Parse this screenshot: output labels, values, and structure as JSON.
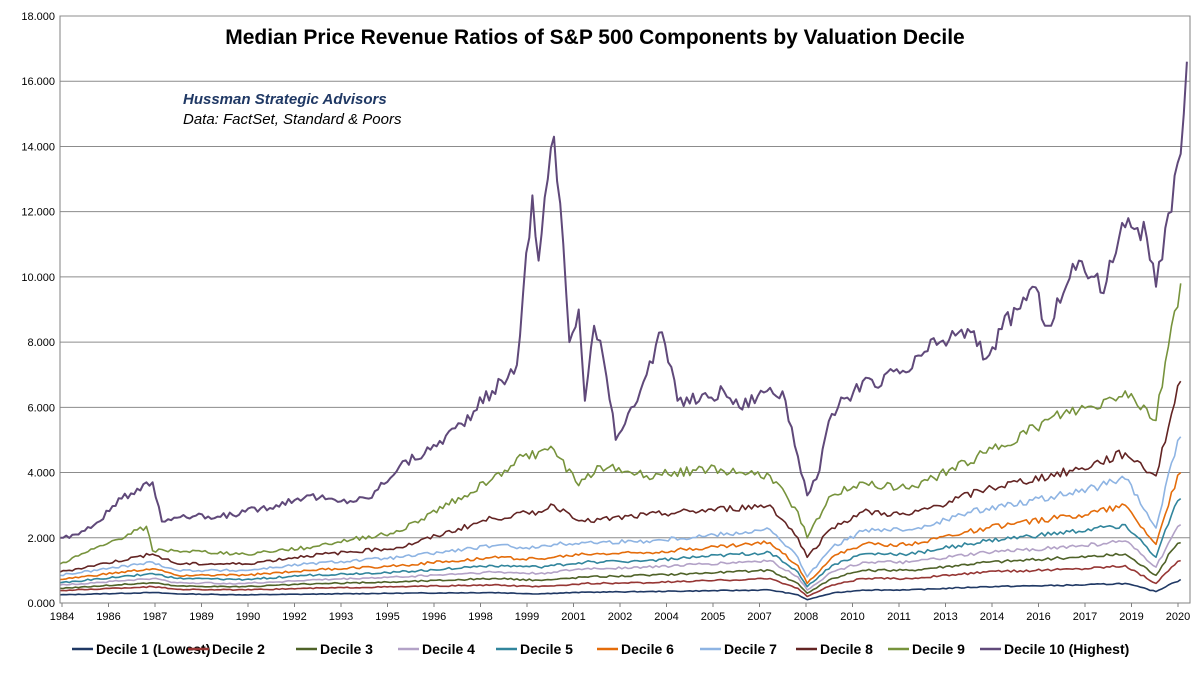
{
  "chart_data": {
    "type": "line",
    "title": "Median Price Revenue Ratios of S&P 500 Components by Valuation Decile",
    "annotations": [
      "Hussman Strategic Advisors",
      "Data: FactSet, Standard & Poors"
    ],
    "xlabel": "",
    "ylabel": "",
    "ylim": [
      0,
      18
    ],
    "xlim": [
      1984.0,
      2020.6
    ],
    "y_ticks": [
      "0.000",
      "2.000",
      "4.000",
      "6.000",
      "8.000",
      "10.000",
      "12.000",
      "14.000",
      "16.000",
      "18.000"
    ],
    "x_ticks": [
      "1984",
      "1986",
      "1987",
      "1989",
      "1990",
      "1992",
      "1993",
      "1995",
      "1996",
      "1998",
      "1999",
      "2001",
      "2002",
      "2004",
      "2005",
      "2007",
      "2008",
      "2010",
      "2011",
      "2013",
      "2014",
      "2016",
      "2017",
      "2019",
      "2020"
    ],
    "grid": "horizontal",
    "legend_position": "bottom",
    "series": [
      {
        "name": "Decile 1 (Lowest)",
        "color": "#1f3864",
        "x": [
          1984.0,
          1987.0,
          1987.8,
          1990.0,
          1992.0,
          1995.0,
          1998.0,
          1999.5,
          2000.0,
          2001.0,
          2003.0,
          2007.0,
          2007.9,
          2008.2,
          2009.0,
          2010.0,
          2011.5,
          2014.0,
          2017.0,
          2018.5,
          2019.5,
          2020.0,
          2020.3
        ],
        "y": [
          0.25,
          0.32,
          0.28,
          0.25,
          0.27,
          0.3,
          0.32,
          0.28,
          0.3,
          0.33,
          0.35,
          0.4,
          0.25,
          0.1,
          0.3,
          0.4,
          0.4,
          0.5,
          0.55,
          0.6,
          0.35,
          0.6,
          0.72
        ]
      },
      {
        "name": "Decile 2",
        "color": "#963634",
        "x": [
          1984.0,
          1987.0,
          1987.8,
          1990.0,
          1992.0,
          1995.0,
          1998.0,
          1999.5,
          2000.0,
          2001.0,
          2003.0,
          2007.0,
          2007.9,
          2008.2,
          2009.0,
          2010.0,
          2011.5,
          2014.0,
          2017.0,
          2018.5,
          2019.5,
          2020.0,
          2020.3
        ],
        "y": [
          0.38,
          0.5,
          0.42,
          0.4,
          0.45,
          0.5,
          0.55,
          0.5,
          0.52,
          0.6,
          0.62,
          0.75,
          0.45,
          0.2,
          0.55,
          0.75,
          0.75,
          0.95,
          1.05,
          1.15,
          0.6,
          1.1,
          1.3
        ]
      },
      {
        "name": "Decile 3",
        "color": "#4f6228",
        "x": [
          1984.0,
          1987.0,
          1987.8,
          1990.0,
          1992.0,
          1995.0,
          1998.0,
          1999.5,
          2000.0,
          2001.0,
          2003.0,
          2007.0,
          2007.9,
          2008.2,
          2009.0,
          2010.0,
          2011.5,
          2014.0,
          2017.0,
          2018.5,
          2019.5,
          2020.0,
          2020.3
        ],
        "y": [
          0.45,
          0.62,
          0.52,
          0.5,
          0.58,
          0.65,
          0.75,
          0.7,
          0.72,
          0.8,
          0.85,
          1.0,
          0.6,
          0.3,
          0.75,
          1.0,
          1.0,
          1.25,
          1.4,
          1.5,
          0.85,
          1.6,
          1.85
        ]
      },
      {
        "name": "Decile 4",
        "color": "#b3a2c7",
        "x": [
          1984.0,
          1987.0,
          1987.8,
          1990.0,
          1992.0,
          1995.0,
          1998.0,
          1999.5,
          2000.0,
          2001.0,
          2003.0,
          2007.0,
          2007.9,
          2008.2,
          2009.0,
          2010.0,
          2011.5,
          2014.0,
          2017.0,
          2018.5,
          2019.5,
          2020.0,
          2020.3
        ],
        "y": [
          0.55,
          0.75,
          0.62,
          0.6,
          0.7,
          0.8,
          0.95,
          0.9,
          0.95,
          1.05,
          1.1,
          1.3,
          0.8,
          0.4,
          0.95,
          1.25,
          1.25,
          1.55,
          1.75,
          1.9,
          1.1,
          2.0,
          2.4
        ]
      },
      {
        "name": "Decile 5",
        "color": "#31859c",
        "x": [
          1984.0,
          1987.0,
          1987.8,
          1990.0,
          1992.0,
          1995.0,
          1998.0,
          1999.5,
          2000.0,
          2001.0,
          2003.0,
          2007.0,
          2007.9,
          2008.2,
          2009.0,
          2010.0,
          2011.5,
          2014.0,
          2017.0,
          2018.5,
          2019.5,
          2020.0,
          2020.3
        ],
        "y": [
          0.62,
          0.9,
          0.75,
          0.72,
          0.85,
          0.95,
          1.15,
          1.1,
          1.15,
          1.25,
          1.3,
          1.55,
          0.95,
          0.5,
          1.15,
          1.5,
          1.5,
          1.9,
          2.2,
          2.4,
          1.4,
          2.7,
          3.2
        ]
      },
      {
        "name": "Decile 6",
        "color": "#e46c0a",
        "x": [
          1984.0,
          1987.0,
          1987.8,
          1990.0,
          1992.0,
          1995.0,
          1998.0,
          1999.5,
          2000.0,
          2001.0,
          2003.0,
          2007.0,
          2007.9,
          2008.2,
          2009.0,
          2010.0,
          2011.5,
          2014.0,
          2017.0,
          2018.5,
          2019.5,
          2020.0,
          2020.3
        ],
        "y": [
          0.72,
          1.05,
          0.85,
          0.85,
          1.0,
          1.15,
          1.4,
          1.35,
          1.4,
          1.5,
          1.55,
          1.85,
          1.15,
          0.6,
          1.4,
          1.8,
          1.8,
          2.3,
          2.7,
          3.0,
          1.8,
          3.4,
          4.0
        ]
      },
      {
        "name": "Decile 7",
        "color": "#8eb4e3",
        "x": [
          1984.0,
          1987.0,
          1987.8,
          1990.0,
          1992.0,
          1995.0,
          1998.0,
          1999.5,
          2000.0,
          2001.0,
          2003.0,
          2007.0,
          2007.9,
          2008.2,
          2009.0,
          2010.0,
          2011.5,
          2014.0,
          2017.0,
          2018.5,
          2019.5,
          2020.0,
          2020.3
        ],
        "y": [
          0.85,
          1.25,
          1.0,
          1.0,
          1.2,
          1.4,
          1.75,
          1.7,
          1.8,
          1.85,
          1.9,
          2.25,
          1.4,
          0.8,
          1.7,
          2.2,
          2.25,
          2.9,
          3.4,
          3.8,
          2.3,
          4.3,
          5.1
        ]
      },
      {
        "name": "Decile 8",
        "color": "#632423",
        "x": [
          1984.0,
          1987.0,
          1987.8,
          1990.0,
          1992.0,
          1995.0,
          1998.0,
          1999.5,
          2000.0,
          2001.0,
          2003.0,
          2007.0,
          2007.9,
          2008.2,
          2009.0,
          2010.0,
          2011.5,
          2014.0,
          2017.0,
          2018.5,
          2019.5,
          2020.0,
          2020.3
        ],
        "y": [
          0.95,
          1.5,
          1.2,
          1.2,
          1.45,
          1.7,
          2.6,
          2.8,
          3.0,
          2.5,
          2.7,
          3.0,
          2.0,
          1.4,
          2.3,
          2.8,
          2.7,
          3.5,
          4.1,
          4.6,
          3.9,
          5.8,
          6.8
        ]
      },
      {
        "name": "Decile 9",
        "color": "#77933c",
        "x": [
          1984.0,
          1985.5,
          1986.8,
          1987.0,
          1987.8,
          1990.0,
          1992.0,
          1995.0,
          1998.0,
          1999.0,
          2000.0,
          2000.8,
          2001.5,
          2003.0,
          2005.0,
          2007.0,
          2007.9,
          2008.2,
          2009.0,
          2010.0,
          2011.5,
          2014.0,
          2016.5,
          2017.5,
          2018.5,
          2019.5,
          2020.0,
          2020.3
        ],
        "y": [
          1.2,
          1.8,
          2.35,
          1.6,
          1.6,
          1.5,
          1.7,
          2.2,
          3.8,
          4.5,
          4.7,
          3.6,
          4.2,
          3.9,
          4.1,
          3.9,
          2.8,
          2.0,
          3.3,
          3.7,
          3.5,
          4.6,
          5.8,
          6.0,
          6.5,
          5.6,
          8.5,
          9.8
        ]
      },
      {
        "name": "Decile 10 (Highest)",
        "color": "#60497a",
        "x": [
          1984.0,
          1984.5,
          1985.0,
          1986.0,
          1986.8,
          1987.0,
          1987.3,
          1988.0,
          1989.0,
          1990.0,
          1991.0,
          1992.0,
          1993.0,
          1994.0,
          1995.0,
          1996.0,
          1997.0,
          1998.0,
          1998.5,
          1998.8,
          1999.0,
          1999.3,
          1999.5,
          1999.8,
          2000.0,
          2000.3,
          2000.5,
          2000.8,
          2001.0,
          2001.3,
          2001.6,
          2002.0,
          2002.5,
          2003.0,
          2003.5,
          2004.0,
          2005.0,
          2005.5,
          2006.0,
          2007.0,
          2007.5,
          2007.9,
          2008.2,
          2008.5,
          2009.0,
          2009.5,
          2010.0,
          2010.5,
          2011.0,
          2011.5,
          2012.0,
          2012.5,
          2013.0,
          2013.5,
          2014.0,
          2014.5,
          2015.0,
          2015.5,
          2016.0,
          2016.5,
          2017.0,
          2017.5,
          2017.8,
          2018.0,
          2018.3,
          2018.6,
          2018.9,
          2019.2,
          2019.5,
          2019.8,
          2020.0,
          2020.2,
          2020.4,
          2020.5
        ],
        "y": [
          2.0,
          2.1,
          2.3,
          3.2,
          3.7,
          3.7,
          2.5,
          2.7,
          2.6,
          2.8,
          3.0,
          3.3,
          3.1,
          3.2,
          4.2,
          4.7,
          5.5,
          6.5,
          6.9,
          7.3,
          9.5,
          12.5,
          10.5,
          13.0,
          14.3,
          11.0,
          8.0,
          9.0,
          6.2,
          8.5,
          7.5,
          5.0,
          6.0,
          7.0,
          8.3,
          6.2,
          6.3,
          6.5,
          6.0,
          6.6,
          6.2,
          4.5,
          3.3,
          3.8,
          5.8,
          6.3,
          6.8,
          6.6,
          7.1,
          7.1,
          7.7,
          8.0,
          8.2,
          8.3,
          7.5,
          8.4,
          9.0,
          9.7,
          8.5,
          9.5,
          10.5,
          10.0,
          9.5,
          10.5,
          11.2,
          11.8,
          11.5,
          11.2,
          9.7,
          11.5,
          12.0,
          13.5,
          15.0,
          16.6
        ]
      }
    ]
  }
}
